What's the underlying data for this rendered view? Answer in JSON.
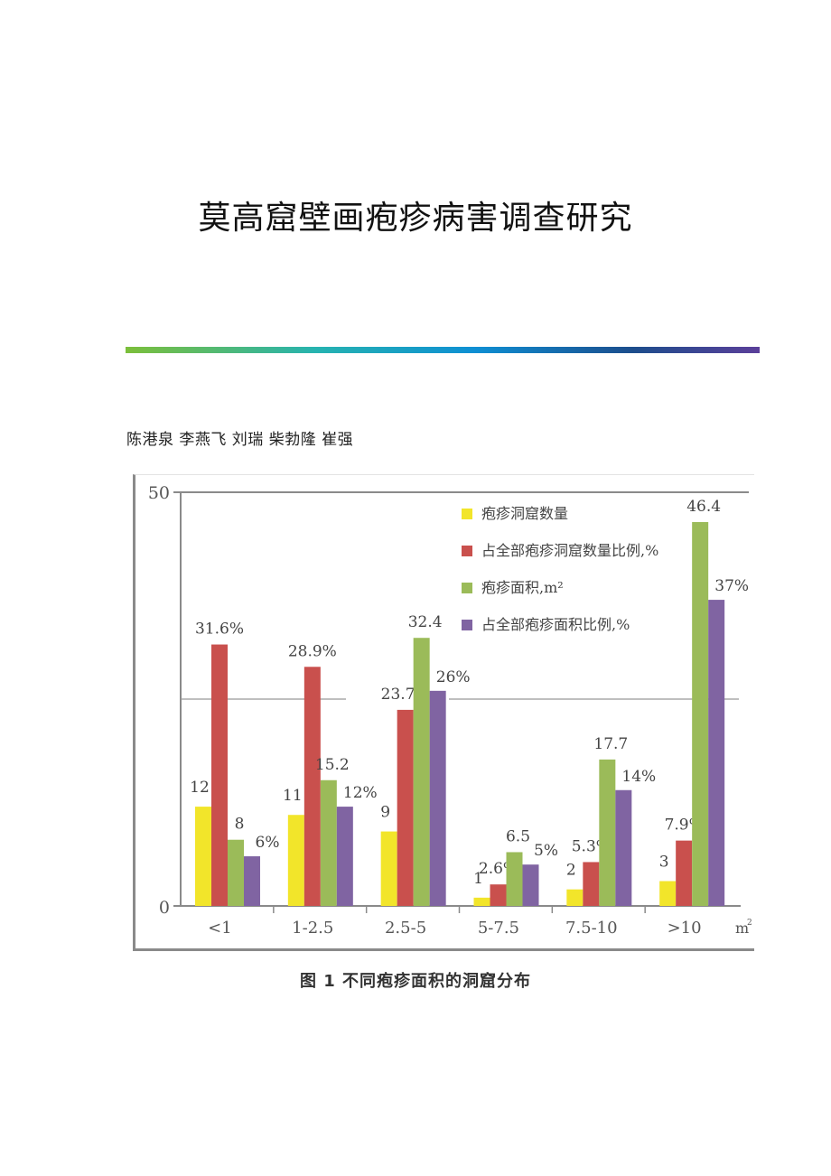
{
  "document": {
    "title": "莫高窟壁画疱疹病害调查研究",
    "authors": "陈港泉  李燕飞  刘瑞  柴勃隆  崔强",
    "figure_caption": "图 1   不同疱疹面积的洞窟分布"
  },
  "chart_data": {
    "type": "bar",
    "title": "图 1 不同疱疹面积的洞窟分布",
    "xlabel": "m²",
    "ylabel": "",
    "ylim": [
      0,
      50
    ],
    "yticks": [
      "0",
      "50"
    ],
    "gridlines": [
      25
    ],
    "legend_position": "top-right",
    "categories": [
      "<1",
      "1-2.5",
      "2.5-5",
      "5-7.5",
      "7.5-10",
      ">10"
    ],
    "series": [
      {
        "name": "疱疹洞窟数量",
        "color": "#f2e52a",
        "values": [
          12,
          11,
          9,
          1,
          2,
          3
        ],
        "labels": [
          "12",
          "11",
          "9",
          "1",
          "2",
          "3"
        ]
      },
      {
        "name": "占全部疱疹洞窟数量比例,%",
        "color": "#c9504d",
        "values": [
          31.6,
          28.9,
          23.7,
          2.6,
          5.3,
          7.9
        ],
        "labels": [
          "31.6%",
          "28.9%",
          "23.7%",
          "2.6%",
          "5.3%",
          "7.9%"
        ]
      },
      {
        "name": "疱疹面积,m²",
        "color": "#9bbb59",
        "values": [
          8,
          15.2,
          32.4,
          6.5,
          17.7,
          46.4
        ],
        "labels": [
          "8",
          "15.2",
          "32.4",
          "6.5",
          "17.7",
          "46.4"
        ]
      },
      {
        "name": "占全部疱疹面积比例,%",
        "color": "#8064a2",
        "values": [
          6,
          12,
          26,
          5,
          14,
          37
        ],
        "labels": [
          "6%",
          "12%",
          "26%",
          "5%",
          "14%",
          "37%"
        ]
      }
    ]
  }
}
